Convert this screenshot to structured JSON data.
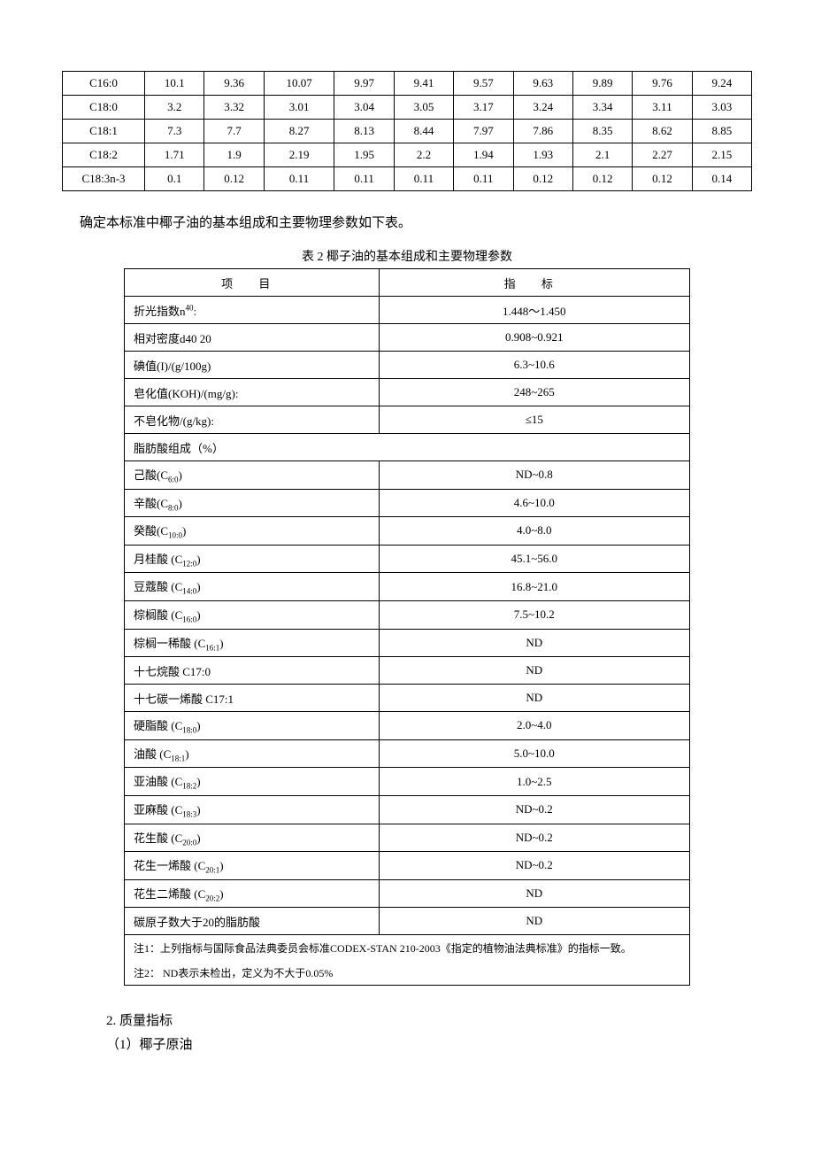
{
  "table1": {
    "rows": [
      {
        "label": "C16:0",
        "v": [
          "10.1",
          "9.36",
          "10.07",
          "9.97",
          "9.41",
          "9.57",
          "9.63",
          "9.89",
          "9.76",
          "9.24"
        ]
      },
      {
        "label": "C18:0",
        "v": [
          "3.2",
          "3.32",
          "3.01",
          "3.04",
          "3.05",
          "3.17",
          "3.24",
          "3.34",
          "3.11",
          "3.03"
        ]
      },
      {
        "label": "C18:1",
        "v": [
          "7.3",
          "7.7",
          "8.27",
          "8.13",
          "8.44",
          "7.97",
          "7.86",
          "8.35",
          "8.62",
          "8.85"
        ]
      },
      {
        "label": "C18:2",
        "v": [
          "1.71",
          "1.9",
          "2.19",
          "1.95",
          "2.2",
          "1.94",
          "1.93",
          "2.1",
          "2.27",
          "2.15"
        ]
      },
      {
        "label": "C18:3n-3",
        "v": [
          "0.1",
          "0.12",
          "0.11",
          "0.11",
          "0.11",
          "0.11",
          "0.12",
          "0.12",
          "0.12",
          "0.14"
        ]
      }
    ]
  },
  "intro_text": "确定本标准中椰子油的基本组成和主要物理参数如下表。",
  "table2_caption": "表 2 椰子油的基本组成和主要物理参数",
  "table2": {
    "header_label": "项   目",
    "header_value": "指  标",
    "rows_top": [
      {
        "label_html": "折光指数n<span class=\"sup\">40</span>:",
        "value": "1.448～1.450"
      },
      {
        "label_html": "相对密度d40 20",
        "value": "0.908~0.921"
      },
      {
        "label_html": "碘值(I)/(g/100g)",
        "value": "6.3~10.6"
      },
      {
        "label_html": "皂化值(KOH)/(mg/g):",
        "value": "248~265"
      },
      {
        "label_html": "不皂化物/(g/kg):",
        "value": "≤15"
      }
    ],
    "span_row": "脂肪酸组成（%）",
    "rows_fa": [
      {
        "label_html": "己酸(C<span class=\"sub\">6:0</span>)",
        "value": "ND~0.8"
      },
      {
        "label_html": "辛酸(C<span class=\"sub\">8:0</span>)",
        "value": "4.6~10.0"
      },
      {
        "label_html": "癸酸(C<span class=\"sub\">10:0</span>)",
        "value": "4.0~8.0"
      },
      {
        "label_html": "月桂酸 (C<span class=\"sub\">12:0</span>)",
        "value": "45.1~56.0"
      },
      {
        "label_html": "豆蔻酸 (C<span class=\"sub\">14:0</span>)",
        "value": "16.8~21.0"
      },
      {
        "label_html": "棕榈酸 (C<span class=\"sub\">16:0</span>)",
        "value": "7.5~10.2"
      },
      {
        "label_html": "棕榈一稀酸 (C<span class=\"sub\">16:1</span>)",
        "value": "ND"
      },
      {
        "label_html": "十七烷酸 C17:0",
        "value": "ND"
      },
      {
        "label_html": "十七碳一烯酸 C17:1",
        "value": "ND"
      },
      {
        "label_html": "硬脂酸 (C<span class=\"sub\">18:0</span>)",
        "value": "2.0~4.0"
      },
      {
        "label_html": "油酸 (C<span class=\"sub\">18:1</span>)",
        "value": "5.0~10.0"
      },
      {
        "label_html": "亚油酸 (C<span class=\"sub\">18:2</span>)",
        "value": "1.0~2.5"
      },
      {
        "label_html": "亚麻酸 (C<span class=\"sub\">18:3</span>)",
        "value": "ND~0.2"
      },
      {
        "label_html": "花生酸 (C<span class=\"sub\">20:0</span>)",
        "value": "ND~0.2"
      },
      {
        "label_html": "花生一烯酸 (C<span class=\"sub\">20:1</span>)",
        "value": "ND~0.2"
      },
      {
        "label_html": "花生二烯酸 (C<span class=\"sub\">20:2</span>)",
        "value": "ND"
      },
      {
        "label_html": "碳原子数大于20的脂肪酸",
        "value": "ND"
      }
    ],
    "note1": "注1：上列指标与国际食品法典委员会标准CODEX-STAN 210-2003《指定的植物油法典标准》的指标一致。",
    "note2": "注2：  ND表示未检出，定义为不大于0.05%"
  },
  "section_heading": "2.  质量指标",
  "section_sub": "（1）椰子原油"
}
